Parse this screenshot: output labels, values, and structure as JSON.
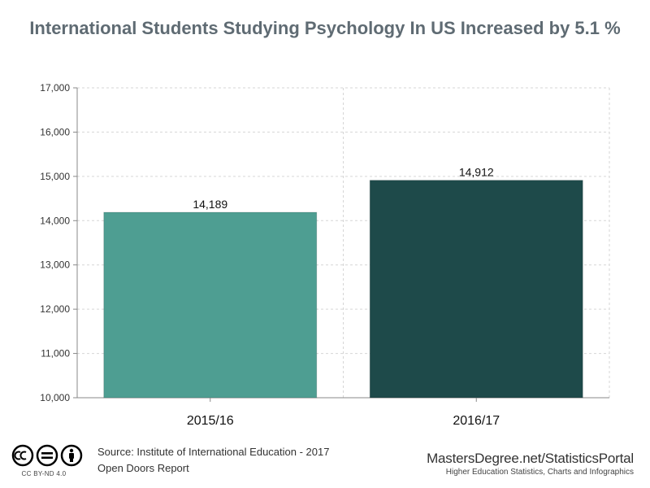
{
  "title": "International Students Studying Psychology In US Increased by 5.1 %",
  "chart_data": {
    "type": "bar",
    "categories": [
      "2015/16",
      "2016/17"
    ],
    "values": [
      14189,
      14912
    ],
    "value_labels": [
      "14,189",
      "14,912"
    ],
    "colors": [
      "#4e9e92",
      "#1e4a4a"
    ],
    "ylim": [
      10000,
      17000
    ],
    "yticks": [
      10000,
      11000,
      12000,
      13000,
      14000,
      15000,
      16000,
      17000
    ],
    "ytick_labels": [
      "10,000",
      "11,000",
      "12,000",
      "13,000",
      "14,000",
      "15,000",
      "16,000",
      "17,000"
    ],
    "grid": true,
    "xlabel": "",
    "ylabel": ""
  },
  "footer": {
    "license": "CC BY-ND 4.0",
    "source_line1": "Source: Institute of International Education - 2017",
    "source_line2": "Open Doors Report",
    "brand": "MastersDegree.net/StatisticsPortal",
    "tagline": "Higher Education Statistics, Charts and Infographics"
  }
}
